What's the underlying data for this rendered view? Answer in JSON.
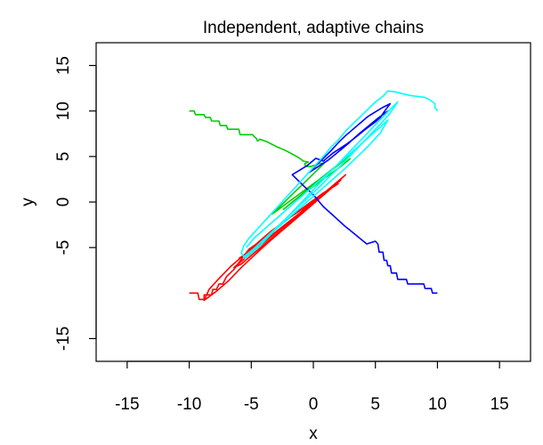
{
  "chart_data": {
    "type": "line",
    "title": "Independent, adaptive chains",
    "xlabel": "x",
    "ylabel": "y",
    "xlim": [
      -17.5,
      17.5
    ],
    "ylim": [
      -17.5,
      17.5
    ],
    "xticks": [
      -15,
      -10,
      -5,
      0,
      5,
      10,
      15
    ],
    "yticks": [
      -15,
      -5,
      0,
      5,
      10,
      15
    ],
    "grid": false,
    "legend": "none",
    "series": [
      {
        "color": "#ff0000",
        "points": [
          [
            -10,
            -10
          ],
          [
            -9.3,
            -10
          ],
          [
            -9.2,
            -10.7
          ],
          [
            -8.8,
            -10.7
          ],
          [
            -8.8,
            -10.2
          ],
          [
            -8.2,
            -10.2
          ],
          [
            -8.1,
            -9.6
          ],
          [
            -7.8,
            -9.6
          ],
          [
            -7.6,
            -9.0
          ],
          [
            -7.3,
            -9.0
          ],
          [
            -7.0,
            -8.2
          ],
          [
            -6.4,
            -7.4
          ],
          [
            -5.8,
            -6.3
          ],
          [
            -5.2,
            -5.2
          ],
          [
            -4.6,
            -4.6
          ],
          [
            -4.0,
            -3.9
          ],
          [
            -3.4,
            -3.2
          ],
          [
            -2.8,
            -2.6
          ],
          [
            -2.2,
            -2.0
          ],
          [
            -1.6,
            -1.4
          ],
          [
            -1.0,
            -0.8
          ],
          [
            -0.4,
            -0.2
          ],
          [
            0.2,
            0.4
          ],
          [
            0.8,
            1.0
          ],
          [
            1.4,
            1.5
          ],
          [
            2.0,
            2.0
          ],
          [
            1.2,
            1.3
          ],
          [
            0.4,
            0.4
          ],
          [
            -0.6,
            -0.5
          ],
          [
            -1.8,
            -1.6
          ],
          [
            -3.0,
            -2.9
          ],
          [
            -4.2,
            -4.2
          ],
          [
            -5.4,
            -5.6
          ],
          [
            -6.6,
            -7.0
          ],
          [
            -7.6,
            -8.4
          ],
          [
            -8.4,
            -9.6
          ],
          [
            -8.8,
            -10.8
          ],
          [
            -7.8,
            -9.8
          ],
          [
            -6.8,
            -8.6
          ],
          [
            -5.8,
            -7.2
          ],
          [
            -4.8,
            -5.9
          ],
          [
            -3.6,
            -4.4
          ],
          [
            -2.4,
            -3.0
          ],
          [
            -1.2,
            -1.6
          ],
          [
            0.0,
            -0.2
          ],
          [
            1.2,
            1.2
          ],
          [
            2.2,
            2.4
          ],
          [
            1.0,
            1.0
          ],
          [
            -0.4,
            -0.6
          ],
          [
            -1.8,
            -2.2
          ],
          [
            -3.2,
            -3.8
          ],
          [
            -4.6,
            -5.4
          ],
          [
            -5.8,
            -6.8
          ],
          [
            -6.4,
            -7.2
          ],
          [
            -5.0,
            -5.6
          ],
          [
            -3.4,
            -3.8
          ],
          [
            -1.8,
            -2.0
          ],
          [
            -0.2,
            -0.2
          ],
          [
            1.4,
            1.6
          ],
          [
            2.6,
            3.0
          ],
          [
            1.8,
            2.0
          ],
          [
            0.6,
            0.6
          ],
          [
            -0.8,
            -0.9
          ],
          [
            -2.2,
            -2.4
          ],
          [
            -3.6,
            -3.9
          ],
          [
            -5.0,
            -5.3
          ],
          [
            -6.0,
            -6.2
          ]
        ]
      },
      {
        "color": "#00cd00",
        "points": [
          [
            -10,
            10
          ],
          [
            -9.6,
            10
          ],
          [
            -9.5,
            9.6
          ],
          [
            -8.8,
            9.6
          ],
          [
            -8.7,
            9.3
          ],
          [
            -8.3,
            9.3
          ],
          [
            -8.2,
            8.9
          ],
          [
            -7.6,
            8.9
          ],
          [
            -7.5,
            8.4
          ],
          [
            -7.0,
            8.4
          ],
          [
            -6.9,
            8.0
          ],
          [
            -6.0,
            8.0
          ],
          [
            -5.9,
            7.4
          ],
          [
            -4.9,
            7.4
          ],
          [
            -4.7,
            7.1
          ],
          [
            -4.6,
            7.0
          ],
          [
            -4.5,
            6.7
          ],
          [
            -4.3,
            6.9
          ],
          [
            -3.7,
            6.6
          ],
          [
            -3.0,
            6.1
          ],
          [
            -2.3,
            5.7
          ],
          [
            -1.6,
            5.2
          ],
          [
            -1.2,
            4.9
          ],
          [
            -0.8,
            4.5
          ],
          [
            -0.4,
            4.4
          ],
          [
            -0.7,
            4.2
          ],
          [
            -0.6,
            3.9
          ],
          [
            -0.2,
            3.9
          ],
          [
            0.4,
            4.2
          ],
          [
            0.9,
            4.3
          ],
          [
            0.3,
            3.5
          ],
          [
            -0.3,
            2.7
          ],
          [
            -0.9,
            1.9
          ],
          [
            -1.5,
            1.1
          ],
          [
            -2.1,
            0.3
          ],
          [
            -2.7,
            -0.5
          ],
          [
            -3.3,
            -1.3
          ],
          [
            -2.5,
            -0.5
          ],
          [
            -1.5,
            0.5
          ],
          [
            -0.5,
            1.5
          ],
          [
            0.5,
            2.5
          ],
          [
            1.5,
            3.6
          ],
          [
            2.5,
            4.6
          ],
          [
            3.2,
            5.4
          ],
          [
            2.4,
            4.5
          ],
          [
            1.4,
            3.4
          ],
          [
            0.4,
            2.3
          ],
          [
            -0.6,
            1.2
          ],
          [
            -1.6,
            0.1
          ],
          [
            -2.4,
            -0.8
          ],
          [
            -1.4,
            0.3
          ],
          [
            -0.2,
            1.5
          ],
          [
            1.0,
            2.7
          ],
          [
            2.2,
            3.9
          ],
          [
            3.0,
            4.8
          ]
        ]
      },
      {
        "color": "#0000ff",
        "points": [
          [
            10,
            -10
          ],
          [
            9.6,
            -10
          ],
          [
            9.5,
            -9.5
          ],
          [
            9.0,
            -9.5
          ],
          [
            8.9,
            -9.0
          ],
          [
            7.6,
            -9.0
          ],
          [
            7.5,
            -8.5
          ],
          [
            6.8,
            -8.5
          ],
          [
            6.7,
            -7.8
          ],
          [
            6.3,
            -7.8
          ],
          [
            6.2,
            -7.0
          ],
          [
            6.0,
            -7.0
          ],
          [
            5.9,
            -6.4
          ],
          [
            5.7,
            -6.4
          ],
          [
            5.6,
            -5.5
          ],
          [
            5.3,
            -5.5
          ],
          [
            5.2,
            -4.6
          ],
          [
            5.0,
            -4.3
          ],
          [
            4.3,
            -4.6
          ],
          [
            3.4,
            -3.6
          ],
          [
            2.5,
            -2.6
          ],
          [
            1.7,
            -1.6
          ],
          [
            0.8,
            -0.5
          ],
          [
            0.0,
            0.8
          ],
          [
            -0.8,
            1.8
          ],
          [
            -1.7,
            3.0
          ],
          [
            -0.5,
            4.0
          ],
          [
            0.2,
            4.8
          ],
          [
            0.8,
            4.5
          ],
          [
            1.6,
            5.4
          ],
          [
            2.6,
            6.3
          ],
          [
            3.4,
            7.1
          ],
          [
            4.2,
            8.0
          ],
          [
            5.0,
            8.8
          ],
          [
            5.4,
            9.3
          ],
          [
            5.8,
            10.1
          ],
          [
            6.2,
            10.8
          ],
          [
            5.6,
            10.4
          ],
          [
            5.0,
            9.9
          ],
          [
            4.4,
            9.4
          ],
          [
            3.8,
            8.7
          ],
          [
            3.2,
            8.0
          ],
          [
            2.6,
            7.3
          ],
          [
            2.0,
            6.5
          ],
          [
            1.4,
            5.6
          ],
          [
            0.8,
            4.8
          ],
          [
            0.2,
            4.0
          ],
          [
            -0.4,
            3.2
          ],
          [
            0.4,
            3.9
          ],
          [
            1.2,
            4.6
          ],
          [
            2.0,
            5.5
          ],
          [
            2.8,
            6.4
          ],
          [
            3.6,
            7.4
          ],
          [
            4.4,
            8.3
          ],
          [
            5.2,
            9.2
          ],
          [
            6.0,
            10.0
          ]
        ]
      },
      {
        "color": "#00ffff",
        "points": [
          [
            10,
            10
          ],
          [
            9.8,
            10.4
          ],
          [
            9.8,
            10.8
          ],
          [
            9.4,
            11.2
          ],
          [
            9.0,
            11.5
          ],
          [
            8.4,
            11.6
          ],
          [
            7.8,
            11.7
          ],
          [
            7.2,
            11.9
          ],
          [
            6.6,
            12.1
          ],
          [
            6.0,
            12.2
          ],
          [
            5.6,
            11.6
          ],
          [
            5.0,
            11.0
          ],
          [
            4.4,
            10.2
          ],
          [
            3.8,
            9.4
          ],
          [
            3.2,
            8.6
          ],
          [
            2.6,
            7.8
          ],
          [
            2.0,
            6.8
          ],
          [
            1.4,
            6.0
          ],
          [
            0.8,
            5.0
          ],
          [
            0.2,
            4.1
          ],
          [
            -0.4,
            3.2
          ],
          [
            -1.0,
            2.3
          ],
          [
            -1.6,
            1.4
          ],
          [
            -2.2,
            0.5
          ],
          [
            -2.8,
            -0.4
          ],
          [
            -3.4,
            -1.3
          ],
          [
            -4.0,
            -2.2
          ],
          [
            -4.6,
            -3.1
          ],
          [
            -5.2,
            -4.0
          ],
          [
            -5.6,
            -4.8
          ],
          [
            -5.8,
            -5.6
          ],
          [
            -5.5,
            -6.2
          ],
          [
            -4.9,
            -5.4
          ],
          [
            -4.3,
            -4.5
          ],
          [
            -3.6,
            -3.6
          ],
          [
            -2.9,
            -2.7
          ],
          [
            -2.2,
            -1.8
          ],
          [
            -1.5,
            -0.9
          ],
          [
            -0.8,
            0.0
          ],
          [
            -0.1,
            0.9
          ],
          [
            0.6,
            1.8
          ],
          [
            1.3,
            2.8
          ],
          [
            2.0,
            3.7
          ],
          [
            2.7,
            4.7
          ],
          [
            3.4,
            5.7
          ],
          [
            4.1,
            6.7
          ],
          [
            4.8,
            7.7
          ],
          [
            5.5,
            8.7
          ],
          [
            6.2,
            9.8
          ],
          [
            6.8,
            11.0
          ],
          [
            6.2,
            10.2
          ],
          [
            5.5,
            9.2
          ],
          [
            4.8,
            8.2
          ],
          [
            4.1,
            7.2
          ],
          [
            3.4,
            6.2
          ],
          [
            2.7,
            5.2
          ],
          [
            2.0,
            4.2
          ],
          [
            1.3,
            3.2
          ],
          [
            0.6,
            2.2
          ],
          [
            -0.1,
            1.2
          ],
          [
            -0.8,
            0.2
          ],
          [
            -1.5,
            -0.8
          ],
          [
            -2.2,
            -1.8
          ],
          [
            -2.9,
            -2.8
          ],
          [
            -3.6,
            -3.8
          ],
          [
            -4.3,
            -4.8
          ],
          [
            -5.0,
            -5.6
          ],
          [
            -5.6,
            -6.0
          ],
          [
            -4.6,
            -4.9
          ],
          [
            -3.6,
            -3.7
          ],
          [
            -2.6,
            -2.5
          ],
          [
            -1.6,
            -1.3
          ],
          [
            -0.6,
            -0.1
          ],
          [
            0.4,
            1.1
          ],
          [
            1.4,
            2.3
          ],
          [
            2.4,
            3.5
          ],
          [
            3.4,
            4.8
          ],
          [
            4.4,
            6.1
          ],
          [
            5.4,
            7.6
          ],
          [
            6.0,
            9.0
          ],
          [
            5.2,
            8.0
          ],
          [
            4.2,
            6.8
          ],
          [
            3.2,
            5.6
          ],
          [
            2.2,
            4.4
          ],
          [
            1.2,
            3.2
          ],
          [
            0.2,
            2.0
          ],
          [
            -0.8,
            0.8
          ],
          [
            -1.8,
            -0.4
          ],
          [
            -2.8,
            -1.6
          ],
          [
            -3.8,
            -2.8
          ],
          [
            -4.8,
            -4.0
          ],
          [
            -5.4,
            -5.0
          ]
        ]
      }
    ]
  }
}
